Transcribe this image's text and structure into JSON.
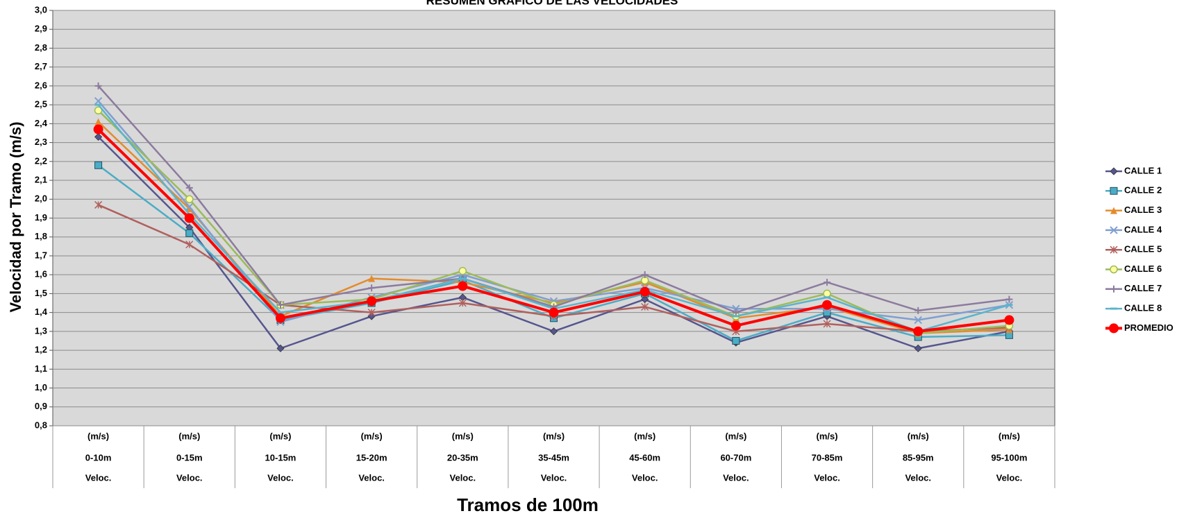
{
  "chart_data": {
    "type": "line",
    "title": "RESUMEN GRÁFICO DE LAS VELOCIDADES",
    "y_label": "Velocidad por Tramo (m/s)",
    "x_label": "Tramos de 100m",
    "categories": [
      [
        "(m/s)",
        "0-10m",
        "Veloc."
      ],
      [
        "(m/s)",
        "0-15m",
        "Veloc."
      ],
      [
        "(m/s)",
        "10-15m",
        "Veloc."
      ],
      [
        "(m/s)",
        "15-20m",
        "Veloc."
      ],
      [
        "(m/s)",
        "20-35m",
        "Veloc."
      ],
      [
        "(m/s)",
        "35-45m",
        "Veloc."
      ],
      [
        "(m/s)",
        "45-60m",
        "Veloc."
      ],
      [
        "(m/s)",
        "60-70m",
        "Veloc."
      ],
      [
        "(m/s)",
        "70-85m",
        "Veloc."
      ],
      [
        "(m/s)",
        "85-95m",
        "Veloc."
      ],
      [
        "(m/s)",
        "95-100m",
        "Veloc."
      ]
    ],
    "series": [
      {
        "name": "CALLE 1",
        "color": "#55558f",
        "marker": "diamond",
        "values": [
          2.33,
          1.85,
          1.21,
          1.38,
          1.48,
          1.3,
          1.47,
          1.24,
          1.38,
          1.21,
          1.3
        ]
      },
      {
        "name": "CALLE 2",
        "color": "#4bacc6",
        "marker": "square",
        "values": [
          2.18,
          1.82,
          1.36,
          1.45,
          1.57,
          1.37,
          1.5,
          1.25,
          1.4,
          1.27,
          1.28
        ]
      },
      {
        "name": "CALLE 3",
        "color": "#e38b2c",
        "marker": "triangle",
        "values": [
          2.41,
          1.95,
          1.38,
          1.58,
          1.56,
          1.45,
          1.56,
          1.37,
          1.43,
          1.29,
          1.31
        ]
      },
      {
        "name": "CALLE 4",
        "color": "#7f9fd0",
        "marker": "x",
        "values": [
          2.52,
          1.96,
          1.35,
          1.48,
          1.6,
          1.46,
          1.53,
          1.42,
          1.42,
          1.36,
          1.44
        ]
      },
      {
        "name": "CALLE 5",
        "color": "#b0605d",
        "marker": "star",
        "values": [
          1.97,
          1.76,
          1.44,
          1.4,
          1.45,
          1.38,
          1.43,
          1.3,
          1.34,
          1.3,
          1.32
        ]
      },
      {
        "name": "CALLE 6",
        "color": "#9bbb59",
        "marker": "circle",
        "values": [
          2.47,
          2.0,
          1.44,
          1.47,
          1.62,
          1.44,
          1.57,
          1.38,
          1.5,
          1.29,
          1.33
        ]
      },
      {
        "name": "CALLE 7",
        "color": "#8c7b9e",
        "marker": "plus",
        "values": [
          2.6,
          2.06,
          1.44,
          1.53,
          1.58,
          1.43,
          1.6,
          1.4,
          1.56,
          1.41,
          1.47
        ]
      },
      {
        "name": "CALLE 8",
        "color": "#5ab4cc",
        "marker": "dash",
        "values": [
          2.5,
          1.92,
          1.4,
          1.46,
          1.58,
          1.42,
          1.52,
          1.38,
          1.48,
          1.3,
          1.44
        ]
      },
      {
        "name": "PROMEDIO",
        "color": "#ff0000",
        "marker": "bigcircle",
        "values": [
          2.37,
          1.9,
          1.37,
          1.46,
          1.54,
          1.4,
          1.51,
          1.33,
          1.44,
          1.3,
          1.36
        ]
      }
    ],
    "ylim": [
      0.8,
      3.0
    ],
    "yticks": [
      {
        "value": 0.8,
        "label": "0,8"
      },
      {
        "value": 0.9,
        "label": "0,9"
      },
      {
        "value": 1.0,
        "label": "1,0"
      },
      {
        "value": 1.1,
        "label": "1,1"
      },
      {
        "value": 1.2,
        "label": "1,2"
      },
      {
        "value": 1.3,
        "label": "1,3"
      },
      {
        "value": 1.4,
        "label": "1,4"
      },
      {
        "value": 1.5,
        "label": "1,5"
      },
      {
        "value": 1.6,
        "label": "1,6"
      },
      {
        "value": 1.7,
        "label": "1,7"
      },
      {
        "value": 1.8,
        "label": "1,8"
      },
      {
        "value": 1.9,
        "label": "1,9"
      },
      {
        "value": 2.0,
        "label": "2,0"
      },
      {
        "value": 2.1,
        "label": "2,1"
      },
      {
        "value": 2.2,
        "label": "2,2"
      },
      {
        "value": 2.3,
        "label": "2,3"
      },
      {
        "value": 2.4,
        "label": "2,4"
      },
      {
        "value": 2.5,
        "label": "2,5"
      },
      {
        "value": 2.6,
        "label": "2,6"
      },
      {
        "value": 2.7,
        "label": "2,7"
      },
      {
        "value": 2.8,
        "label": "2,8"
      },
      {
        "value": 2.9,
        "label": "2,9"
      },
      {
        "value": 3.0,
        "label": "3,0"
      }
    ],
    "grid": true,
    "legend": "right"
  }
}
